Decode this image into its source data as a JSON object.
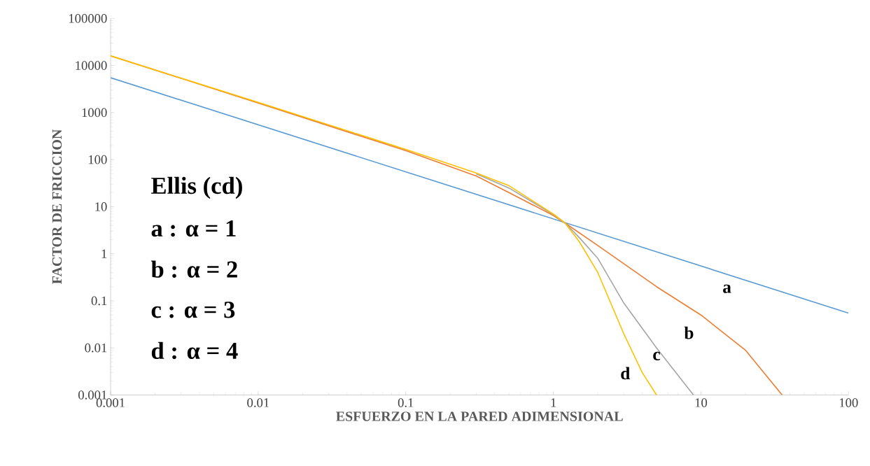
{
  "chart_data": {
    "type": "line",
    "xlabel": "ESFUERZO EN LA PARED ADIMENSIONAL",
    "ylabel": "FACTOR DE FRICCION",
    "log": "xy",
    "xlim": [
      0.001,
      100
    ],
    "ylim": [
      0.001,
      100000
    ],
    "xticks": [
      0.001,
      0.01,
      0.1,
      1,
      10,
      100
    ],
    "yticks": [
      0.001,
      0.01,
      0.1,
      1,
      10,
      100,
      1000,
      10000,
      100000
    ],
    "annotations": [
      "Ellis (cd)",
      "a : α = 1",
      "b : α = 2",
      "c : α = 3",
      "d : α = 4"
    ],
    "series": [
      {
        "name": "a",
        "color": "#5b9bd5",
        "x": [
          0.001,
          100
        ],
        "values": [
          5500,
          0.055
        ]
      },
      {
        "name": "b",
        "color": "#ed7d31",
        "x": [
          0.001,
          0.01,
          0.1,
          0.3,
          0.5,
          1,
          1.2,
          2,
          5,
          10,
          20,
          35.5
        ],
        "values": [
          16000,
          1600,
          155,
          45,
          20,
          6.5,
          4.5,
          1.5,
          0.2,
          0.05,
          0.009,
          0.001
        ]
      },
      {
        "name": "c",
        "color": "#a5a5a5",
        "x": [
          0.3,
          0.5,
          1,
          1.2,
          1.5,
          2,
          3,
          5,
          8.9
        ],
        "values": [
          50,
          25,
          6.8,
          4.5,
          2.2,
          0.8,
          0.09,
          0.01,
          0.001
        ]
      },
      {
        "name": "d",
        "color": "#ffc000",
        "x": [
          0.001,
          0.01,
          0.1,
          0.3,
          0.5,
          1,
          1.2,
          1.5,
          2,
          3,
          4,
          5
        ],
        "values": [
          16000,
          1650,
          165,
          52,
          28,
          7,
          4.5,
          1.8,
          0.4,
          0.02,
          0.003,
          0.001
        ]
      }
    ]
  }
}
